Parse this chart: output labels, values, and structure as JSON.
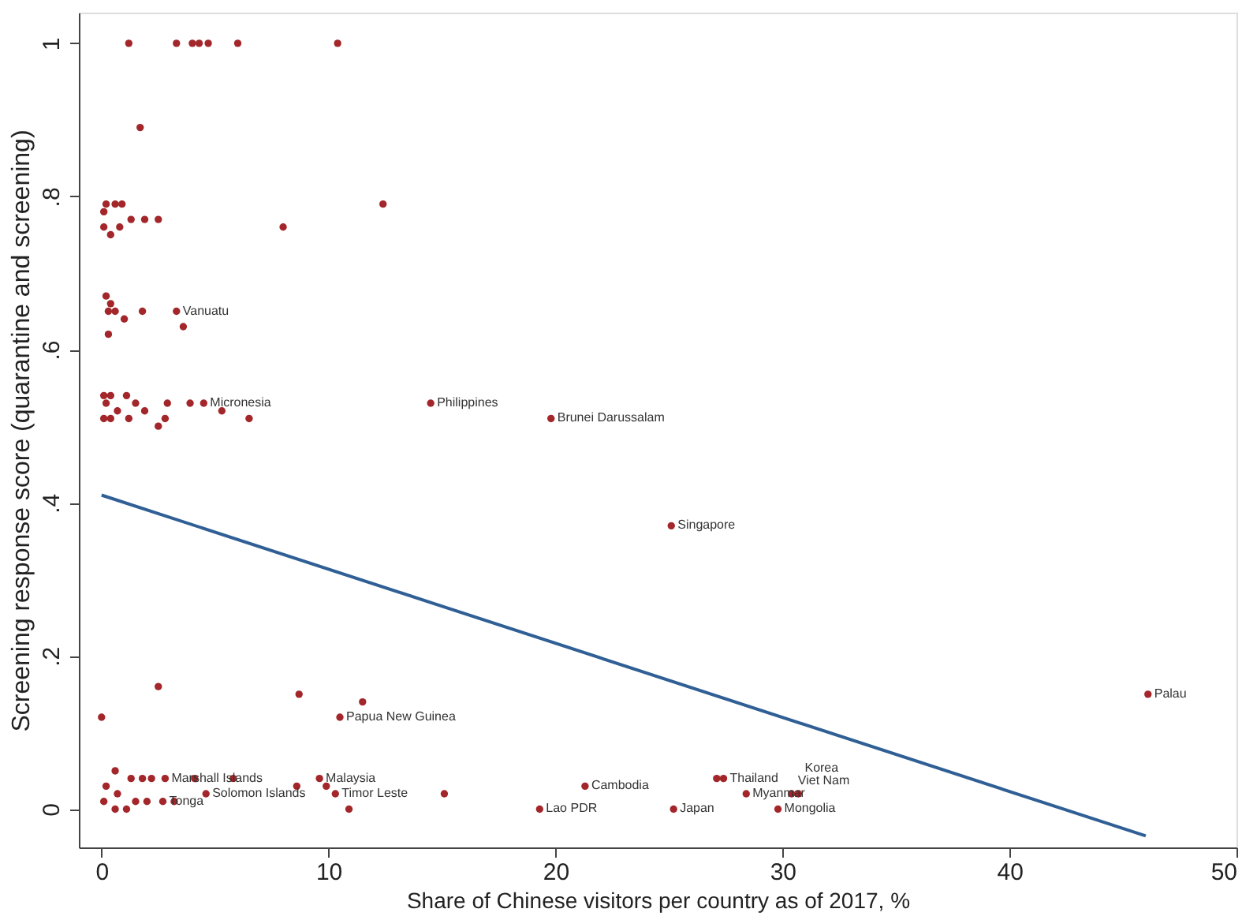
{
  "chart_data": {
    "type": "scatter",
    "xlabel": "Share of Chinese visitors per country as of 2017, %",
    "ylabel": "Screening response score (quarantine and screening)",
    "xlim": [
      -1,
      50
    ],
    "ylim": [
      -0.05,
      1.04
    ],
    "xticks": [
      0,
      10,
      20,
      30,
      40,
      50
    ],
    "yticks": [
      0,
      {
        "value": 0.2,
        "label": ".2"
      },
      {
        "value": 0.4,
        "label": ".4"
      },
      {
        "value": 0.6,
        "label": ".6"
      },
      {
        "value": 0.8,
        "label": ".8"
      },
      1
    ],
    "grid": false,
    "series": [
      {
        "type": "scatter",
        "marker": "circle",
        "color": "#a3262a",
        "x": [
          1.2,
          3.3,
          4.0,
          4.3,
          4.7,
          6.0,
          10.4,
          1.7,
          0.2,
          0.6,
          0.9,
          0.1,
          1.3,
          1.9,
          2.5,
          0.1,
          0.8,
          0.4,
          8.0,
          12.4,
          0.2,
          0.4,
          0.3,
          0.6,
          1.0,
          1.8,
          3.3,
          3.6,
          0.3,
          0.1,
          0.4,
          1.1,
          0.2,
          0.7,
          1.5,
          1.9,
          2.9,
          3.9,
          4.5,
          5.3,
          6.5,
          0.1,
          0.4,
          1.2,
          2.5,
          2.8,
          14.5,
          19.8,
          25.1,
          46.1,
          2.5,
          0,
          8.7,
          11.5,
          10.5,
          0.6,
          0.2,
          1.3,
          1.8,
          2.2,
          2.8,
          4.1,
          5.8,
          8.6,
          9.6,
          9.9,
          4.6,
          10.3,
          10.9,
          15.1,
          2.7,
          3.2,
          0.1,
          0.6,
          1.1,
          1.5,
          2.0,
          0.7,
          19.3,
          21.3,
          25.2,
          27.1,
          27.4,
          28.4,
          29.8,
          30.4,
          30.7
        ],
        "values": [
          1,
          1,
          1,
          1,
          1,
          1,
          1,
          0.89,
          0.79,
          0.79,
          0.79,
          0.78,
          0.77,
          0.77,
          0.77,
          0.76,
          0.76,
          0.75,
          0.76,
          0.79,
          0.67,
          0.66,
          0.65,
          0.65,
          0.64,
          0.65,
          0.65,
          0.63,
          0.62,
          0.54,
          0.54,
          0.54,
          0.53,
          0.52,
          0.53,
          0.52,
          0.53,
          0.53,
          0.53,
          0.52,
          0.51,
          0.51,
          0.51,
          0.51,
          0.5,
          0.51,
          0.53,
          0.51,
          0.37,
          0.15,
          0.16,
          0.12,
          0.15,
          0.14,
          0.12,
          0.05,
          0.03,
          0.04,
          0.04,
          0.04,
          0.04,
          0.04,
          0.04,
          0.03,
          0.04,
          0.03,
          0.02,
          0.02,
          0,
          0.02,
          0.01,
          0.01,
          0.01,
          0,
          0,
          0.01,
          0.01,
          0.02,
          0,
          0.03,
          0,
          0.04,
          0.04,
          0.02,
          0,
          0.02,
          0.02
        ]
      },
      {
        "type": "line",
        "color": "#2f5f95",
        "x": [
          0,
          46
        ],
        "values": [
          0.41,
          -0.035
        ]
      }
    ],
    "annotations": [
      {
        "text": "Vanuatu",
        "x": 3.3,
        "y": 0.65
      },
      {
        "text": "Micronesia",
        "x": 4.5,
        "y": 0.53
      },
      {
        "text": "Philippines",
        "x": 14.5,
        "y": 0.53
      },
      {
        "text": "Brunei Darussalam",
        "x": 19.8,
        "y": 0.51
      },
      {
        "text": "Singapore",
        "x": 25.1,
        "y": 0.37
      },
      {
        "text": "Palau",
        "x": 46.1,
        "y": 0.15
      },
      {
        "text": "Papua New Guinea",
        "x": 10.5,
        "y": 0.12
      },
      {
        "text": "Marshall Islands",
        "x": 2.8,
        "y": 0.04
      },
      {
        "text": "Tonga",
        "x": 2.7,
        "y": 0.01
      },
      {
        "text": "Solomon Islands",
        "x": 4.6,
        "y": 0.02
      },
      {
        "text": "Malaysia",
        "x": 9.6,
        "y": 0.04
      },
      {
        "text": "Timor Leste",
        "x": 10.3,
        "y": 0.02
      },
      {
        "text": "Lao PDR",
        "x": 19.3,
        "y": 0
      },
      {
        "text": "Cambodia",
        "x": 21.3,
        "y": 0.03
      },
      {
        "text": "Japan",
        "x": 25.2,
        "y": 0
      },
      {
        "text": "Thailand",
        "x": 27.4,
        "y": 0.04
      },
      {
        "text": "Myanmar",
        "x": 28.4,
        "y": 0.02
      },
      {
        "text": "Mongolia",
        "x": 29.8,
        "y": 0
      },
      {
        "text": "Viet Nam",
        "x": 30.4,
        "y": 0.02
      },
      {
        "text": "Korea",
        "x": 30.7,
        "y": 0.02
      }
    ]
  }
}
